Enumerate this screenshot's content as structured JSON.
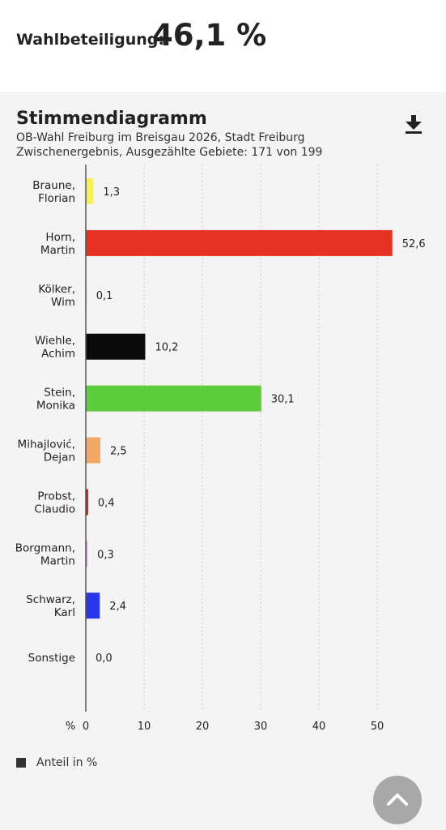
{
  "header": {
    "turnout_label": "Wahlbeteiligung:",
    "turnout_value": "46,1 %"
  },
  "chart_section": {
    "title": "Stimmendiagramm",
    "subtitle_line1": "OB-Wahl Freiburg im Breisgau 2026, Stadt Freiburg",
    "subtitle_line2": "Zwischenergebnis, Ausgezählte Gebiete: 171 von 199",
    "download_icon": "download-icon",
    "legend_label": "Anteil in %",
    "scroll_top_icon": "chevron-up-icon"
  },
  "chart_data": {
    "type": "bar",
    "orientation": "horizontal",
    "categories": [
      [
        "Braune,",
        "Florian"
      ],
      [
        "Horn,",
        "Martin"
      ],
      [
        "Kölker,",
        "Wim"
      ],
      [
        "Wiehle,",
        "Achim"
      ],
      [
        "Stein,",
        "Monika"
      ],
      [
        "Mihajlović,",
        "Dejan"
      ],
      [
        "Probst,",
        "Claudio"
      ],
      [
        "Borgmann,",
        "Martin"
      ],
      [
        "Schwarz,",
        "Karl"
      ],
      [
        "Sonstige"
      ]
    ],
    "values": [
      1.3,
      52.6,
      0.1,
      10.2,
      30.1,
      2.5,
      0.4,
      0.3,
      2.4,
      0.0
    ],
    "value_labels": [
      "1,3",
      "52,6",
      "0,1",
      "10,2",
      "30,1",
      "2,5",
      "0,4",
      "0,3",
      "2,4",
      "0,0"
    ],
    "colors": [
      "#f8f05a",
      "#e63222",
      "#999999",
      "#0a0a0a",
      "#5ccb3c",
      "#f2a765",
      "#c01f1a",
      "#f095e8",
      "#2a37e8",
      "#999999"
    ],
    "x_unit_label": "%",
    "x_ticks": [
      0,
      10,
      20,
      30,
      40,
      50
    ],
    "xlim": [
      0,
      54
    ],
    "grid": true,
    "series": [
      {
        "name": "Anteil in %"
      }
    ],
    "legend_position": "bottom-left"
  }
}
